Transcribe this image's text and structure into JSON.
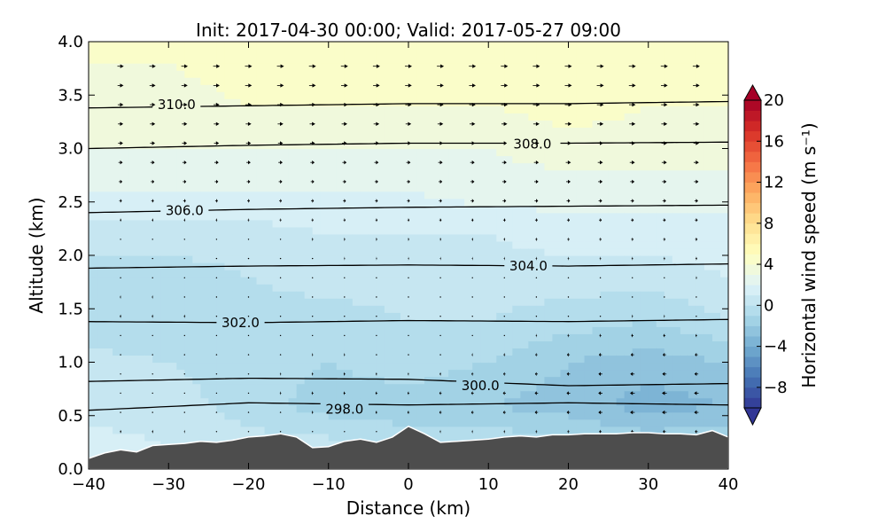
{
  "chart_data": {
    "type": "heatmap",
    "title": "Init: 2017-04-30 00:00; Valid: 2017-05-27 09:00",
    "xlabel": "Distance (km)",
    "ylabel": "Altitude (km)",
    "xlim": [
      -40,
      40
    ],
    "ylim": [
      0.0,
      4.0
    ],
    "xticks": [
      "−40",
      "−30",
      "−20",
      "−10",
      "0",
      "10",
      "20",
      "30",
      "40"
    ],
    "xtick_values": [
      -40,
      -30,
      -20,
      -10,
      0,
      10,
      20,
      30,
      40
    ],
    "yticks": [
      "0.0",
      "0.5",
      "1.0",
      "1.5",
      "2.0",
      "2.5",
      "3.0",
      "3.5",
      "4.0"
    ],
    "ytick_values": [
      0.0,
      0.5,
      1.0,
      1.5,
      2.0,
      2.5,
      3.0,
      3.5,
      4.0
    ],
    "colorbar": {
      "label": "Horizontal wind speed (m s⁻¹)",
      "min": -10,
      "max": 20,
      "step": 1,
      "extend": "both",
      "ticks": [
        "−8",
        "−4",
        "0",
        "4",
        "8",
        "12",
        "16",
        "20"
      ],
      "tick_values": [
        -8,
        -4,
        0,
        4,
        8,
        12,
        16,
        20
      ],
      "colormap": [
        "#313695",
        "#4575b4",
        "#74add1",
        "#abd9e9",
        "#e0f3f8",
        "#ffffbf",
        "#fee090",
        "#fdae61",
        "#f46d43",
        "#d73027",
        "#a50026"
      ]
    },
    "wind_speed_field": {
      "x": [
        -40,
        -30,
        -20,
        -10,
        0,
        10,
        20,
        30,
        40
      ],
      "y": [
        0.2,
        0.6,
        1.0,
        1.4,
        1.8,
        2.2,
        2.6,
        3.0,
        3.4,
        3.8
      ],
      "values": [
        [
          1.5,
          1.0,
          0.5,
          0.5,
          -0.5,
          0.0,
          -0.5,
          -1.0,
          -1.0
        ],
        [
          0.5,
          0.5,
          -0.5,
          -1.5,
          -1.5,
          -2.0,
          -2.5,
          -3.5,
          -3.0
        ],
        [
          0.5,
          0.0,
          -0.5,
          -1.0,
          -0.5,
          -1.0,
          -2.0,
          -2.5,
          -2.0
        ],
        [
          -1.0,
          -1.0,
          -0.5,
          -0.5,
          0.0,
          0.0,
          -0.5,
          -1.0,
          0.0
        ],
        [
          -0.5,
          -0.5,
          0.0,
          0.5,
          0.5,
          0.5,
          0.5,
          0.5,
          1.0
        ],
        [
          0.5,
          0.5,
          0.5,
          1.0,
          1.0,
          1.0,
          1.5,
          1.5,
          1.5
        ],
        [
          2.0,
          2.0,
          2.0,
          2.0,
          2.0,
          2.5,
          2.5,
          2.5,
          2.5
        ],
        [
          3.0,
          3.0,
          3.0,
          3.0,
          3.0,
          3.0,
          3.5,
          3.5,
          3.5
        ],
        [
          3.5,
          3.5,
          4.0,
          4.0,
          4.0,
          4.0,
          4.5,
          4.0,
          4.0
        ],
        [
          4.0,
          4.0,
          4.5,
          4.5,
          4.5,
          4.5,
          4.5,
          4.5,
          4.5
        ]
      ]
    },
    "theta_contours": [
      {
        "label": "310.0",
        "label_x": -29,
        "x": [
          -40,
          -20,
          0,
          20,
          40
        ],
        "y": [
          3.38,
          3.4,
          3.42,
          3.42,
          3.44
        ],
        "label_y": 3.41
      },
      {
        "label": "308.0",
        "label_x": 15.5,
        "x": [
          -40,
          -20,
          0,
          20,
          40
        ],
        "y": [
          3.0,
          3.03,
          3.05,
          3.05,
          3.06
        ],
        "label_y": 3.04
      },
      {
        "label": "306.0",
        "label_x": -28,
        "x": [
          -40,
          -20,
          0,
          20,
          40
        ],
        "y": [
          2.4,
          2.43,
          2.45,
          2.46,
          2.47
        ],
        "label_y": 2.42
      },
      {
        "label": "304.0",
        "label_x": 15,
        "x": [
          -40,
          -20,
          0,
          20,
          40
        ],
        "y": [
          1.88,
          1.9,
          1.91,
          1.9,
          1.92
        ],
        "label_y": 1.9
      },
      {
        "label": "302.0",
        "label_x": -21,
        "x": [
          -40,
          -20,
          0,
          20,
          40
        ],
        "y": [
          1.38,
          1.37,
          1.39,
          1.38,
          1.4
        ],
        "label_y": 1.37
      },
      {
        "label": "300.0",
        "label_x": 9,
        "x": [
          -40,
          -20,
          0,
          20,
          40
        ],
        "y": [
          0.82,
          0.85,
          0.84,
          0.78,
          0.8
        ],
        "label_y": 0.78
      },
      {
        "label": "298.0",
        "label_x": -8,
        "x": [
          -40,
          -20,
          0,
          20,
          40
        ],
        "y": [
          0.55,
          0.62,
          0.6,
          0.62,
          0.6
        ],
        "label_y": 0.56
      }
    ],
    "terrain": {
      "x": [
        -40,
        -38,
        -36,
        -34,
        -32,
        -30,
        -28,
        -26,
        -24,
        -22,
        -20,
        -18,
        -16,
        -14,
        -12,
        -10,
        -8,
        -6,
        -4,
        -2,
        0,
        2,
        4,
        6,
        8,
        10,
        12,
        14,
        16,
        18,
        20,
        22,
        24,
        26,
        28,
        30,
        32,
        34,
        36,
        38,
        40
      ],
      "y": [
        0.1,
        0.15,
        0.18,
        0.16,
        0.22,
        0.23,
        0.24,
        0.26,
        0.25,
        0.27,
        0.3,
        0.31,
        0.33,
        0.3,
        0.2,
        0.21,
        0.26,
        0.28,
        0.25,
        0.3,
        0.4,
        0.33,
        0.25,
        0.26,
        0.27,
        0.28,
        0.3,
        0.31,
        0.3,
        0.32,
        0.32,
        0.33,
        0.33,
        0.33,
        0.34,
        0.34,
        0.33,
        0.33,
        0.32,
        0.36,
        0.3
      ]
    }
  }
}
